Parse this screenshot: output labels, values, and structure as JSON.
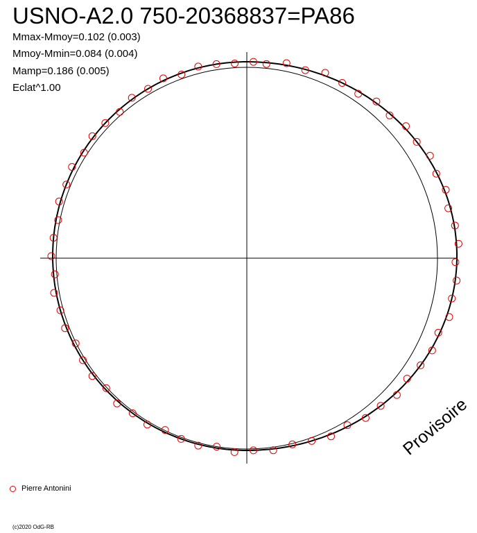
{
  "chart_data": {
    "type": "scatter",
    "subtype": "polar-phase-diagram",
    "title": "USNO-A2.0 750-20368837=PA86",
    "stats": [
      "Mmax-Mmoy=0.102 (0.003)",
      "Mmoy-Mmin=0.084 (0.004)",
      "Mamp=0.186 (0.005)",
      "Eclat^1.00"
    ],
    "series": [
      {
        "name": "Pierre Antonini",
        "marker": "open-circle",
        "color": "#e00000",
        "points": [
          [
            0.005,
            0.0
          ],
          [
            0.015,
            -0.01
          ],
          [
            0.03,
            0.015
          ],
          [
            0.045,
            -0.005
          ],
          [
            0.06,
            0.02
          ],
          [
            0.075,
            0.0
          ],
          [
            0.09,
            -0.015
          ],
          [
            0.105,
            0.01
          ],
          [
            0.12,
            -0.01
          ],
          [
            0.135,
            0.015
          ],
          [
            0.15,
            0.0
          ],
          [
            0.165,
            0.02
          ],
          [
            0.18,
            -0.005
          ],
          [
            0.195,
            0.01
          ],
          [
            0.21,
            -0.015
          ],
          [
            0.225,
            0.005
          ],
          [
            0.24,
            0.015
          ],
          [
            0.255,
            -0.01
          ],
          [
            0.27,
            0.01
          ],
          [
            0.285,
            0.0
          ],
          [
            0.3,
            0.02
          ],
          [
            0.315,
            -0.01
          ],
          [
            0.33,
            0.01
          ],
          [
            0.345,
            0.0
          ],
          [
            0.36,
            -0.015
          ],
          [
            0.375,
            0.015
          ],
          [
            0.39,
            0.0
          ],
          [
            0.405,
            0.01
          ],
          [
            0.42,
            -0.01
          ],
          [
            0.435,
            0.015
          ],
          [
            0.45,
            0.0
          ],
          [
            0.465,
            -0.01
          ],
          [
            0.48,
            0.01
          ],
          [
            0.495,
            0.0
          ],
          [
            0.51,
            0.015
          ],
          [
            0.525,
            -0.01
          ],
          [
            0.54,
            0.01
          ],
          [
            0.555,
            0.0
          ],
          [
            0.57,
            -0.015
          ],
          [
            0.585,
            0.01
          ],
          [
            0.6,
            0.0
          ],
          [
            0.615,
            0.015
          ],
          [
            0.63,
            -0.01
          ],
          [
            0.645,
            0.01
          ],
          [
            0.66,
            0.0
          ],
          [
            0.675,
            -0.015
          ],
          [
            0.69,
            0.01
          ],
          [
            0.705,
            0.0
          ],
          [
            0.72,
            0.015
          ],
          [
            0.735,
            -0.01
          ],
          [
            0.75,
            0.01
          ],
          [
            0.765,
            0.0
          ],
          [
            0.78,
            -0.015
          ],
          [
            0.795,
            0.01
          ],
          [
            0.81,
            0.0
          ],
          [
            0.825,
            0.015
          ],
          [
            0.84,
            -0.01
          ],
          [
            0.855,
            0.01
          ],
          [
            0.87,
            0.0
          ],
          [
            0.885,
            -0.015
          ],
          [
            0.9,
            0.01
          ],
          [
            0.915,
            0.0
          ],
          [
            0.93,
            0.015
          ],
          [
            0.945,
            -0.01
          ],
          [
            0.96,
            0.01
          ],
          [
            0.975,
            0.0
          ],
          [
            0.99,
            -0.01
          ]
        ]
      }
    ],
    "mamp": 0.186,
    "mmax_minus_mmoy": 0.102,
    "mmoy_minus_mmin": 0.084,
    "legend_position": "bottom-left",
    "grid": false
  },
  "legend": {
    "observer": "Pierre Antonini"
  },
  "footer": {
    "copyright": "(c)2020 OdG-RB"
  },
  "watermark": {
    "text": "Provisoire"
  },
  "colors": {
    "points": "#e00000",
    "curve": "#000000",
    "axes": "#000000"
  }
}
